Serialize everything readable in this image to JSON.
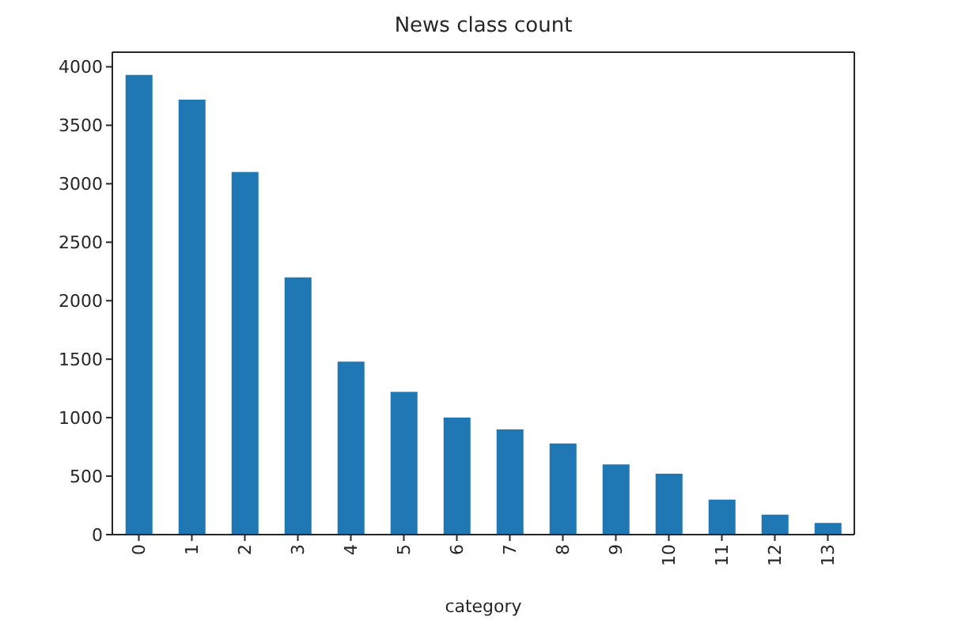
{
  "chart_data": {
    "type": "bar",
    "title": "News class count",
    "xlabel": "category",
    "categories": [
      "0",
      "1",
      "2",
      "3",
      "4",
      "5",
      "6",
      "7",
      "8",
      "9",
      "10",
      "11",
      "12",
      "13"
    ],
    "values": [
      3930,
      3720,
      3100,
      2200,
      1480,
      1220,
      1000,
      900,
      780,
      600,
      520,
      300,
      170,
      100
    ],
    "color": "#1f77b4",
    "ylim": [
      0,
      4125
    ],
    "yticks": [
      0,
      500,
      1000,
      1500,
      2000,
      2500,
      3000,
      3500,
      4000
    ]
  }
}
